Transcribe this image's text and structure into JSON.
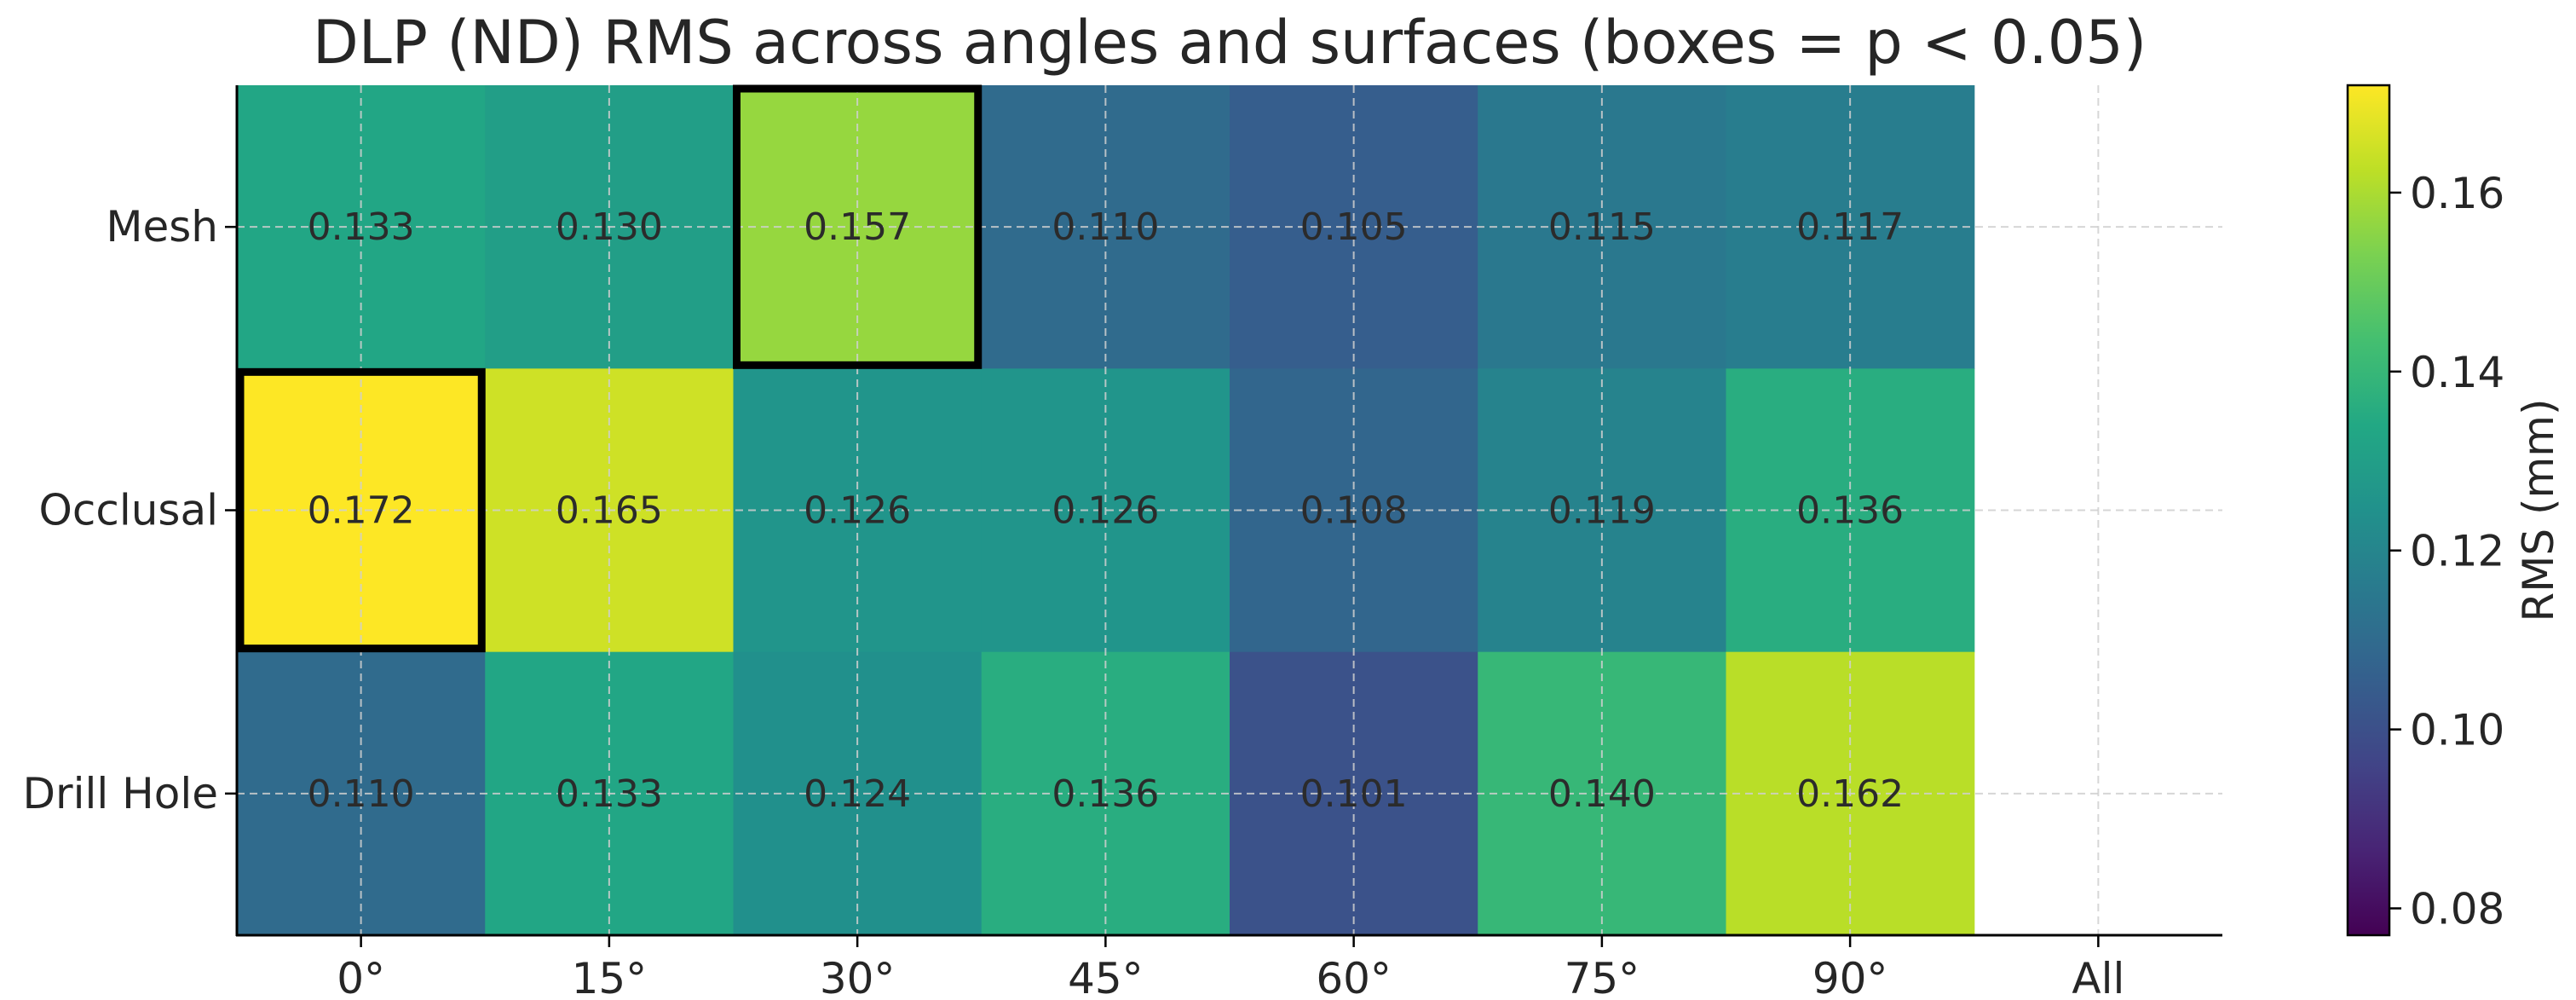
{
  "chart_data": {
    "type": "heatmap",
    "title": "DLP (ND) RMS across angles and surfaces (boxes = p < 0.05)",
    "xlabel": "",
    "ylabel": "",
    "x_categories": [
      "0°",
      "15°",
      "30°",
      "45°",
      "60°",
      "75°",
      "90°",
      "All"
    ],
    "y_categories": [
      "Mesh",
      "Occlusal",
      "Drill Hole"
    ],
    "values": [
      [
        0.133,
        0.13,
        0.157,
        0.11,
        0.105,
        0.115,
        0.117,
        null
      ],
      [
        0.172,
        0.165,
        0.126,
        0.126,
        0.108,
        0.119,
        0.136,
        null
      ],
      [
        0.11,
        0.133,
        0.124,
        0.136,
        0.101,
        0.14,
        0.162,
        null
      ]
    ],
    "value_labels": [
      [
        "0.133",
        "0.130",
        "0.157",
        "0.110",
        "0.105",
        "0.115",
        "0.117"
      ],
      [
        "0.172",
        "0.165",
        "0.126",
        "0.126",
        "0.108",
        "0.119",
        "0.136"
      ],
      [
        "0.110",
        "0.133",
        "0.124",
        "0.136",
        "0.101",
        "0.140",
        "0.162"
      ]
    ],
    "significant_cells": [
      [
        0,
        2
      ],
      [
        1,
        0
      ]
    ],
    "colormap": "viridis",
    "colorbar": {
      "label": "RMS (mm)",
      "range": [
        0.077,
        0.172
      ],
      "ticks": [
        0.08,
        0.1,
        0.12,
        0.14,
        0.16
      ],
      "tick_labels": [
        "0.08",
        "0.10",
        "0.12",
        "0.14",
        "0.16"
      ]
    },
    "grid": true,
    "box_color": "#000000"
  }
}
